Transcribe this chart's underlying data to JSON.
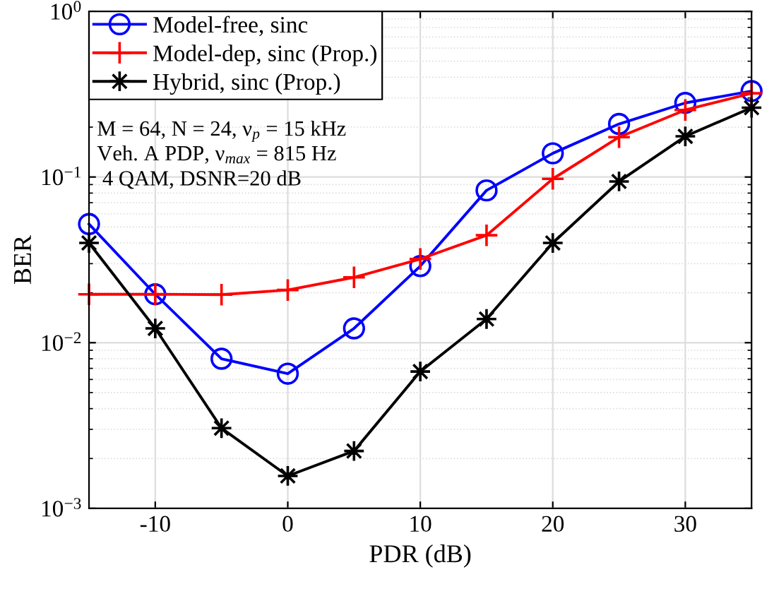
{
  "chart_data": {
    "type": "line",
    "xlabel": "PDR (dB)",
    "ylabel": "BER",
    "log": "y",
    "grid": true,
    "legend": "top left",
    "x": [
      -15,
      -10,
      -5,
      0,
      5,
      10,
      15,
      20,
      25,
      30,
      35
    ],
    "xlim": [
      -15,
      35
    ],
    "xticks": [
      -10,
      0,
      10,
      20,
      30
    ],
    "ylim": [
      0.001,
      1
    ],
    "yticks": [
      {
        "value": 0.001,
        "label": "10$^{−3}$"
      },
      {
        "value": 0.01,
        "label": "10$^{−2}$"
      },
      {
        "value": 0.1,
        "label": "10$^{−1}$"
      },
      {
        "value": 1,
        "label": "10$^{0}$"
      }
    ],
    "series": [
      {
        "name": "Model-free, sinc",
        "color": "#0000ff",
        "marker": "circle",
        "values": [
          0.052,
          0.0196,
          0.008,
          0.0065,
          0.0122,
          0.029,
          0.083,
          0.139,
          0.209,
          0.28,
          0.33
        ]
      },
      {
        "name": "Model-dep, sinc (Prop.)",
        "color": "#ff0000",
        "marker": "cross",
        "values": [
          0.0196,
          0.0196,
          0.0195,
          0.0208,
          0.0248,
          0.032,
          0.0445,
          0.0975,
          0.174,
          0.254,
          0.32
        ]
      },
      {
        "name": "Hybrid, sinc (Prop.)",
        "color": "#000000",
        "marker": "star",
        "values": [
          0.04,
          0.0122,
          0.00305,
          0.00157,
          0.00222,
          0.0067,
          0.0139,
          0.04,
          0.094,
          0.176,
          0.262
        ]
      }
    ],
    "annotations": [
      "M = 64, N = 24, ν$_{p}$ = 15 kHz",
      "Veh. A PDP, ν$_{max}$ = 815 Hz",
      " 4 QAM, DSNR=20 dB"
    ]
  }
}
